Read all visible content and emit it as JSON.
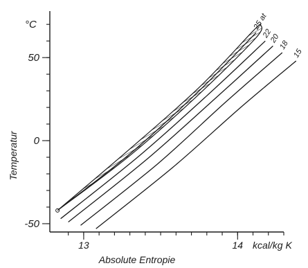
{
  "chart_data": {
    "type": "line",
    "title": "",
    "y_unit": "°C",
    "ylabel": "Temperatur",
    "xlabel": "Absolute Entropie",
    "x_unit": "kcal/kg K",
    "ylim": [
      -55,
      78
    ],
    "xlim": [
      12.78,
      14.3
    ],
    "y_ticks": [
      {
        "value": 50,
        "label": "50"
      },
      {
        "value": 0,
        "label": "0"
      },
      {
        "value": -50,
        "label": "-50"
      }
    ],
    "x_ticks": [
      {
        "value": 13,
        "label": "13"
      },
      {
        "value": 14,
        "label": "14"
      }
    ],
    "series": [
      {
        "name": "25 at",
        "x": [
          12.83,
          13.3,
          13.75,
          14.12
        ],
        "y": [
          -42,
          -8,
          30,
          65
        ]
      },
      {
        "name": "22",
        "x": [
          12.85,
          13.35,
          13.8,
          14.18
        ],
        "y": [
          -47,
          -10,
          27,
          60
        ]
      },
      {
        "name": "20",
        "x": [
          12.9,
          13.4,
          13.85,
          14.23
        ],
        "y": [
          -49,
          -12,
          25,
          57
        ]
      },
      {
        "name": "18",
        "x": [
          12.98,
          13.48,
          13.92,
          14.29
        ],
        "y": [
          -51,
          -14,
          23,
          53
        ]
      },
      {
        "name": "15",
        "x": [
          13.08,
          13.58,
          14.02,
          14.38
        ],
        "y": [
          -53,
          -16,
          20,
          48
        ]
      }
    ],
    "cycle": {
      "upper": {
        "x": [
          12.83,
          13.3,
          13.75,
          14.1,
          14.15
        ],
        "y": [
          -42,
          -5,
          32,
          66,
          70
        ]
      },
      "lower": {
        "x": [
          12.83,
          13.3,
          13.75,
          14.12,
          14.15
        ],
        "y": [
          -42,
          -9,
          28,
          62,
          70
        ]
      }
    }
  }
}
